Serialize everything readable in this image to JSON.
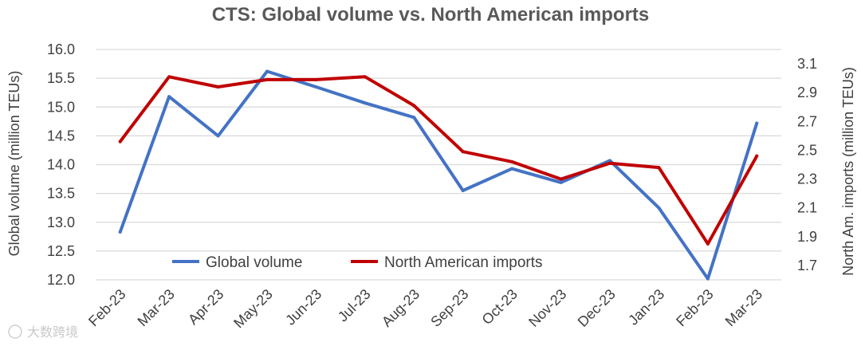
{
  "chart_data": {
    "type": "line",
    "title": "CTS: Global volume vs. North American imports",
    "categories": [
      "Feb-23",
      "Mar-23",
      "Apr-23",
      "May-23",
      "Jun-23",
      "Jul-23",
      "Aug-23",
      "Sep-23",
      "Oct-23",
      "Nov-23",
      "Dec-23",
      "Jan-23",
      "Feb-23",
      "Mar-23"
    ],
    "y_left": {
      "label": "Global volume (million TEUs)",
      "range": [
        12.0,
        16.0
      ],
      "ticks": [
        "12.0",
        "12.5",
        "13.0",
        "13.5",
        "14.0",
        "14.5",
        "15.0",
        "15.5",
        "16.0"
      ]
    },
    "y_right": {
      "label": "North Am. imports (million TEUs)",
      "range": [
        1.6,
        3.2
      ],
      "ticks": [
        "1.7",
        "1.9",
        "2.1",
        "2.3",
        "2.5",
        "2.7",
        "2.9",
        "3.1"
      ]
    },
    "series": [
      {
        "name": "Global volume",
        "axis": "left",
        "color": "#4472c4",
        "values": [
          12.83,
          15.18,
          14.5,
          15.62,
          15.35,
          15.07,
          14.82,
          13.55,
          13.93,
          13.69,
          14.07,
          13.25,
          12.02,
          14.72
        ]
      },
      {
        "name": "North American imports",
        "axis": "right",
        "color": "#c00000",
        "values": [
          2.56,
          3.01,
          2.94,
          2.99,
          2.99,
          3.01,
          2.81,
          2.49,
          2.42,
          2.3,
          2.41,
          2.38,
          1.85,
          2.46
        ]
      }
    ],
    "legend": [
      "Global volume",
      "North American imports"
    ],
    "legend_position": "bottom-left-inside",
    "grid": true
  },
  "watermark": "大数跨境"
}
